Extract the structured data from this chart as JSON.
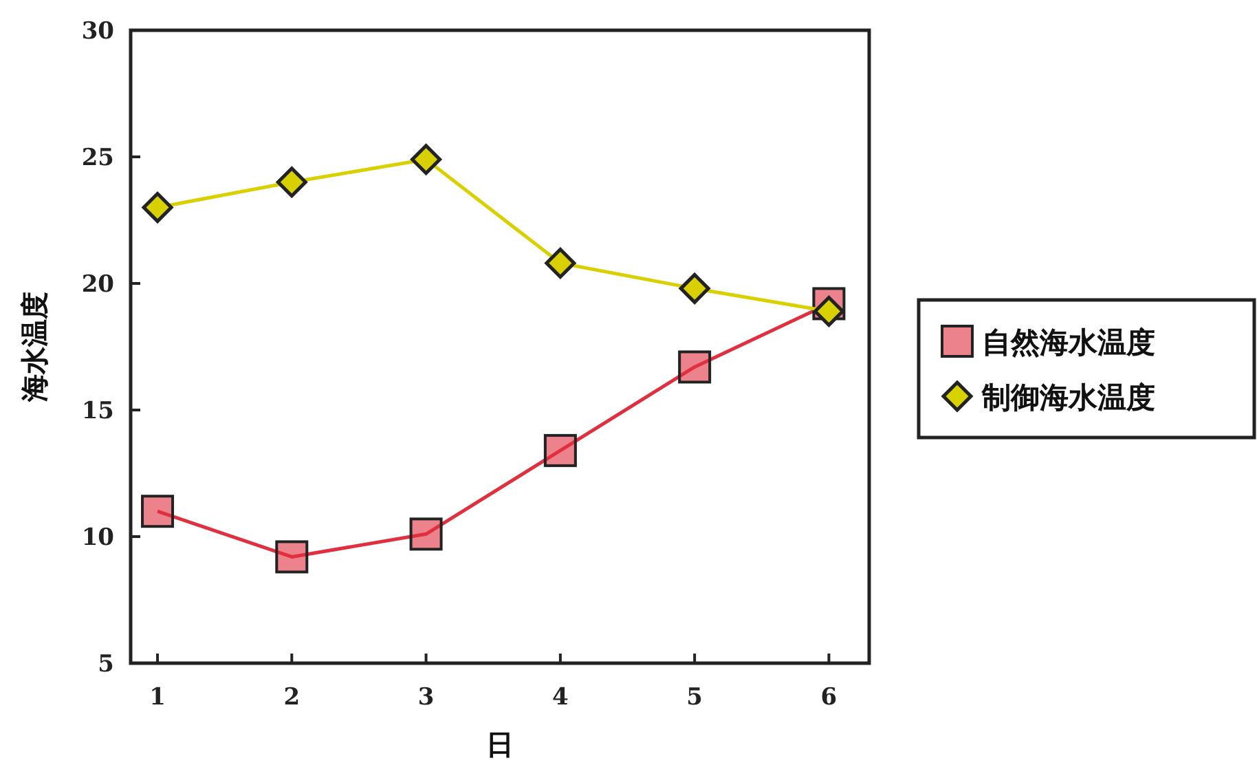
{
  "chart_data": {
    "type": "line",
    "xlabel": "日",
    "ylabel": "海水温度",
    "x": [
      1,
      2,
      3,
      4,
      5,
      6
    ],
    "series": [
      {
        "name": "自然海水温度",
        "color": "#e03040",
        "marker": "square",
        "values": [
          11.0,
          9.2,
          10.1,
          13.4,
          16.7,
          19.2
        ]
      },
      {
        "name": "制御海水温度",
        "color": "#d8d000",
        "marker": "diamond",
        "values": [
          23.0,
          24.0,
          24.9,
          20.8,
          19.8,
          18.9
        ]
      }
    ],
    "xlim": [
      0.8,
      6.3
    ],
    "xticks": [
      1,
      2,
      3,
      4,
      5,
      6
    ],
    "ylim": [
      5,
      30
    ],
    "yticks": [
      5,
      10,
      15,
      20,
      25,
      30
    ],
    "legend": "right",
    "grid": false
  }
}
